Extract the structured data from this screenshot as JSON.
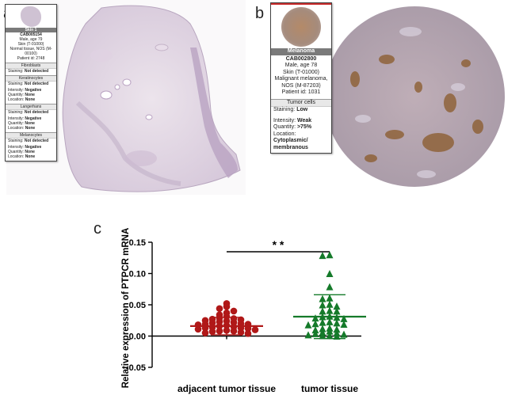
{
  "panels": {
    "a": {
      "letter": "a",
      "legend": {
        "title": "Skin 1",
        "antibody": "CAB005154",
        "patient_lines": [
          "Male, age 79",
          "Skin (T-01000)",
          "Normal tissue, NOS (M-",
          "00100)",
          "Patient id: 2748"
        ],
        "sections": [
          {
            "name": "Fibroblasts",
            "rows": [
              {
                "label": "Staining:",
                "value": "Not detected"
              }
            ]
          },
          {
            "name": "Keratinocytes",
            "rows": [
              {
                "label": "Staining:",
                "value": "Not detected"
              },
              {
                "label": "Intensity:",
                "value": "Negative"
              },
              {
                "label": "Quantity:",
                "value": "None"
              },
              {
                "label": "Location:",
                "value": "None"
              }
            ]
          },
          {
            "name": "Langerhans",
            "rows": [
              {
                "label": "Staining:",
                "value": "Not detected"
              },
              {
                "label": "Intensity:",
                "value": "Negative"
              },
              {
                "label": "Quantity:",
                "value": "None"
              },
              {
                "label": "Location:",
                "value": "None"
              }
            ]
          },
          {
            "name": "Melanocytes",
            "rows": [
              {
                "label": "Staining:",
                "value": "Not detected"
              },
              {
                "label": "Intensity:",
                "value": "Negative"
              },
              {
                "label": "Quantity:",
                "value": "None"
              },
              {
                "label": "Location:",
                "value": "None"
              }
            ]
          }
        ]
      }
    },
    "b": {
      "letter": "b",
      "legend": {
        "title": "Melanoma",
        "antibody": "CAB002800",
        "patient_lines": [
          "Male, age 78",
          "Skin (T-01000)",
          "Malignant melanoma,",
          "NOS (M-87203)",
          "Patient id: 1031"
        ],
        "section": "Tumor cells",
        "rows": [
          {
            "label": "Staining:",
            "value": "Low"
          },
          {
            "label": "Intensity:",
            "value": "Weak"
          },
          {
            "label": "Quantity:",
            "value": ">75%"
          },
          {
            "label": "Location:",
            "value": "Cytoplasmic/ membranous"
          }
        ]
      }
    },
    "c": {
      "letter": "c"
    }
  },
  "chart_data": {
    "type": "scatter",
    "title": "",
    "xlabel": "",
    "ylabel": "Relative expression of PTPCR mRNA",
    "categories": [
      "adjacent tumor tissue",
      "tumor tissue"
    ],
    "ylim": [
      -0.05,
      0.15
    ],
    "yticks": [
      "0.15",
      "0.10",
      "0.05",
      "0.00",
      "-0.05"
    ],
    "significance": "* *",
    "colors": {
      "adjacent": "#b01818",
      "tumor": "#157a2a"
    },
    "series": [
      {
        "marker": "circle",
        "color": "#b01818",
        "mean": 0.016,
        "sd_low": 0.002,
        "sd_high": 0.03,
        "values": [
          0.052,
          0.047,
          0.044,
          0.04,
          0.037,
          0.034,
          0.031,
          0.029,
          0.028,
          0.027,
          0.026,
          0.025,
          0.024,
          0.023,
          0.022,
          0.021,
          0.02,
          0.019,
          0.019,
          0.018,
          0.017,
          0.016,
          0.015,
          0.014,
          0.013,
          0.013,
          0.012,
          0.011,
          0.01,
          0.009,
          0.008,
          0.008,
          0.007,
          0.006,
          0.005,
          0.004
        ]
      },
      {
        "marker": "triangle",
        "color": "#157a2a",
        "mean": 0.031,
        "sd_low": -0.004,
        "sd_high": 0.066,
        "values": [
          0.13,
          0.129,
          0.1,
          0.079,
          0.061,
          0.06,
          0.051,
          0.05,
          0.048,
          0.041,
          0.04,
          0.04,
          0.032,
          0.031,
          0.03,
          0.029,
          0.028,
          0.023,
          0.022,
          0.021,
          0.02,
          0.019,
          0.018,
          0.013,
          0.012,
          0.011,
          0.01,
          0.008,
          0.006,
          0.005,
          0.004,
          0.003,
          0.002,
          0.001,
          0.001,
          0.0
        ]
      }
    ]
  }
}
